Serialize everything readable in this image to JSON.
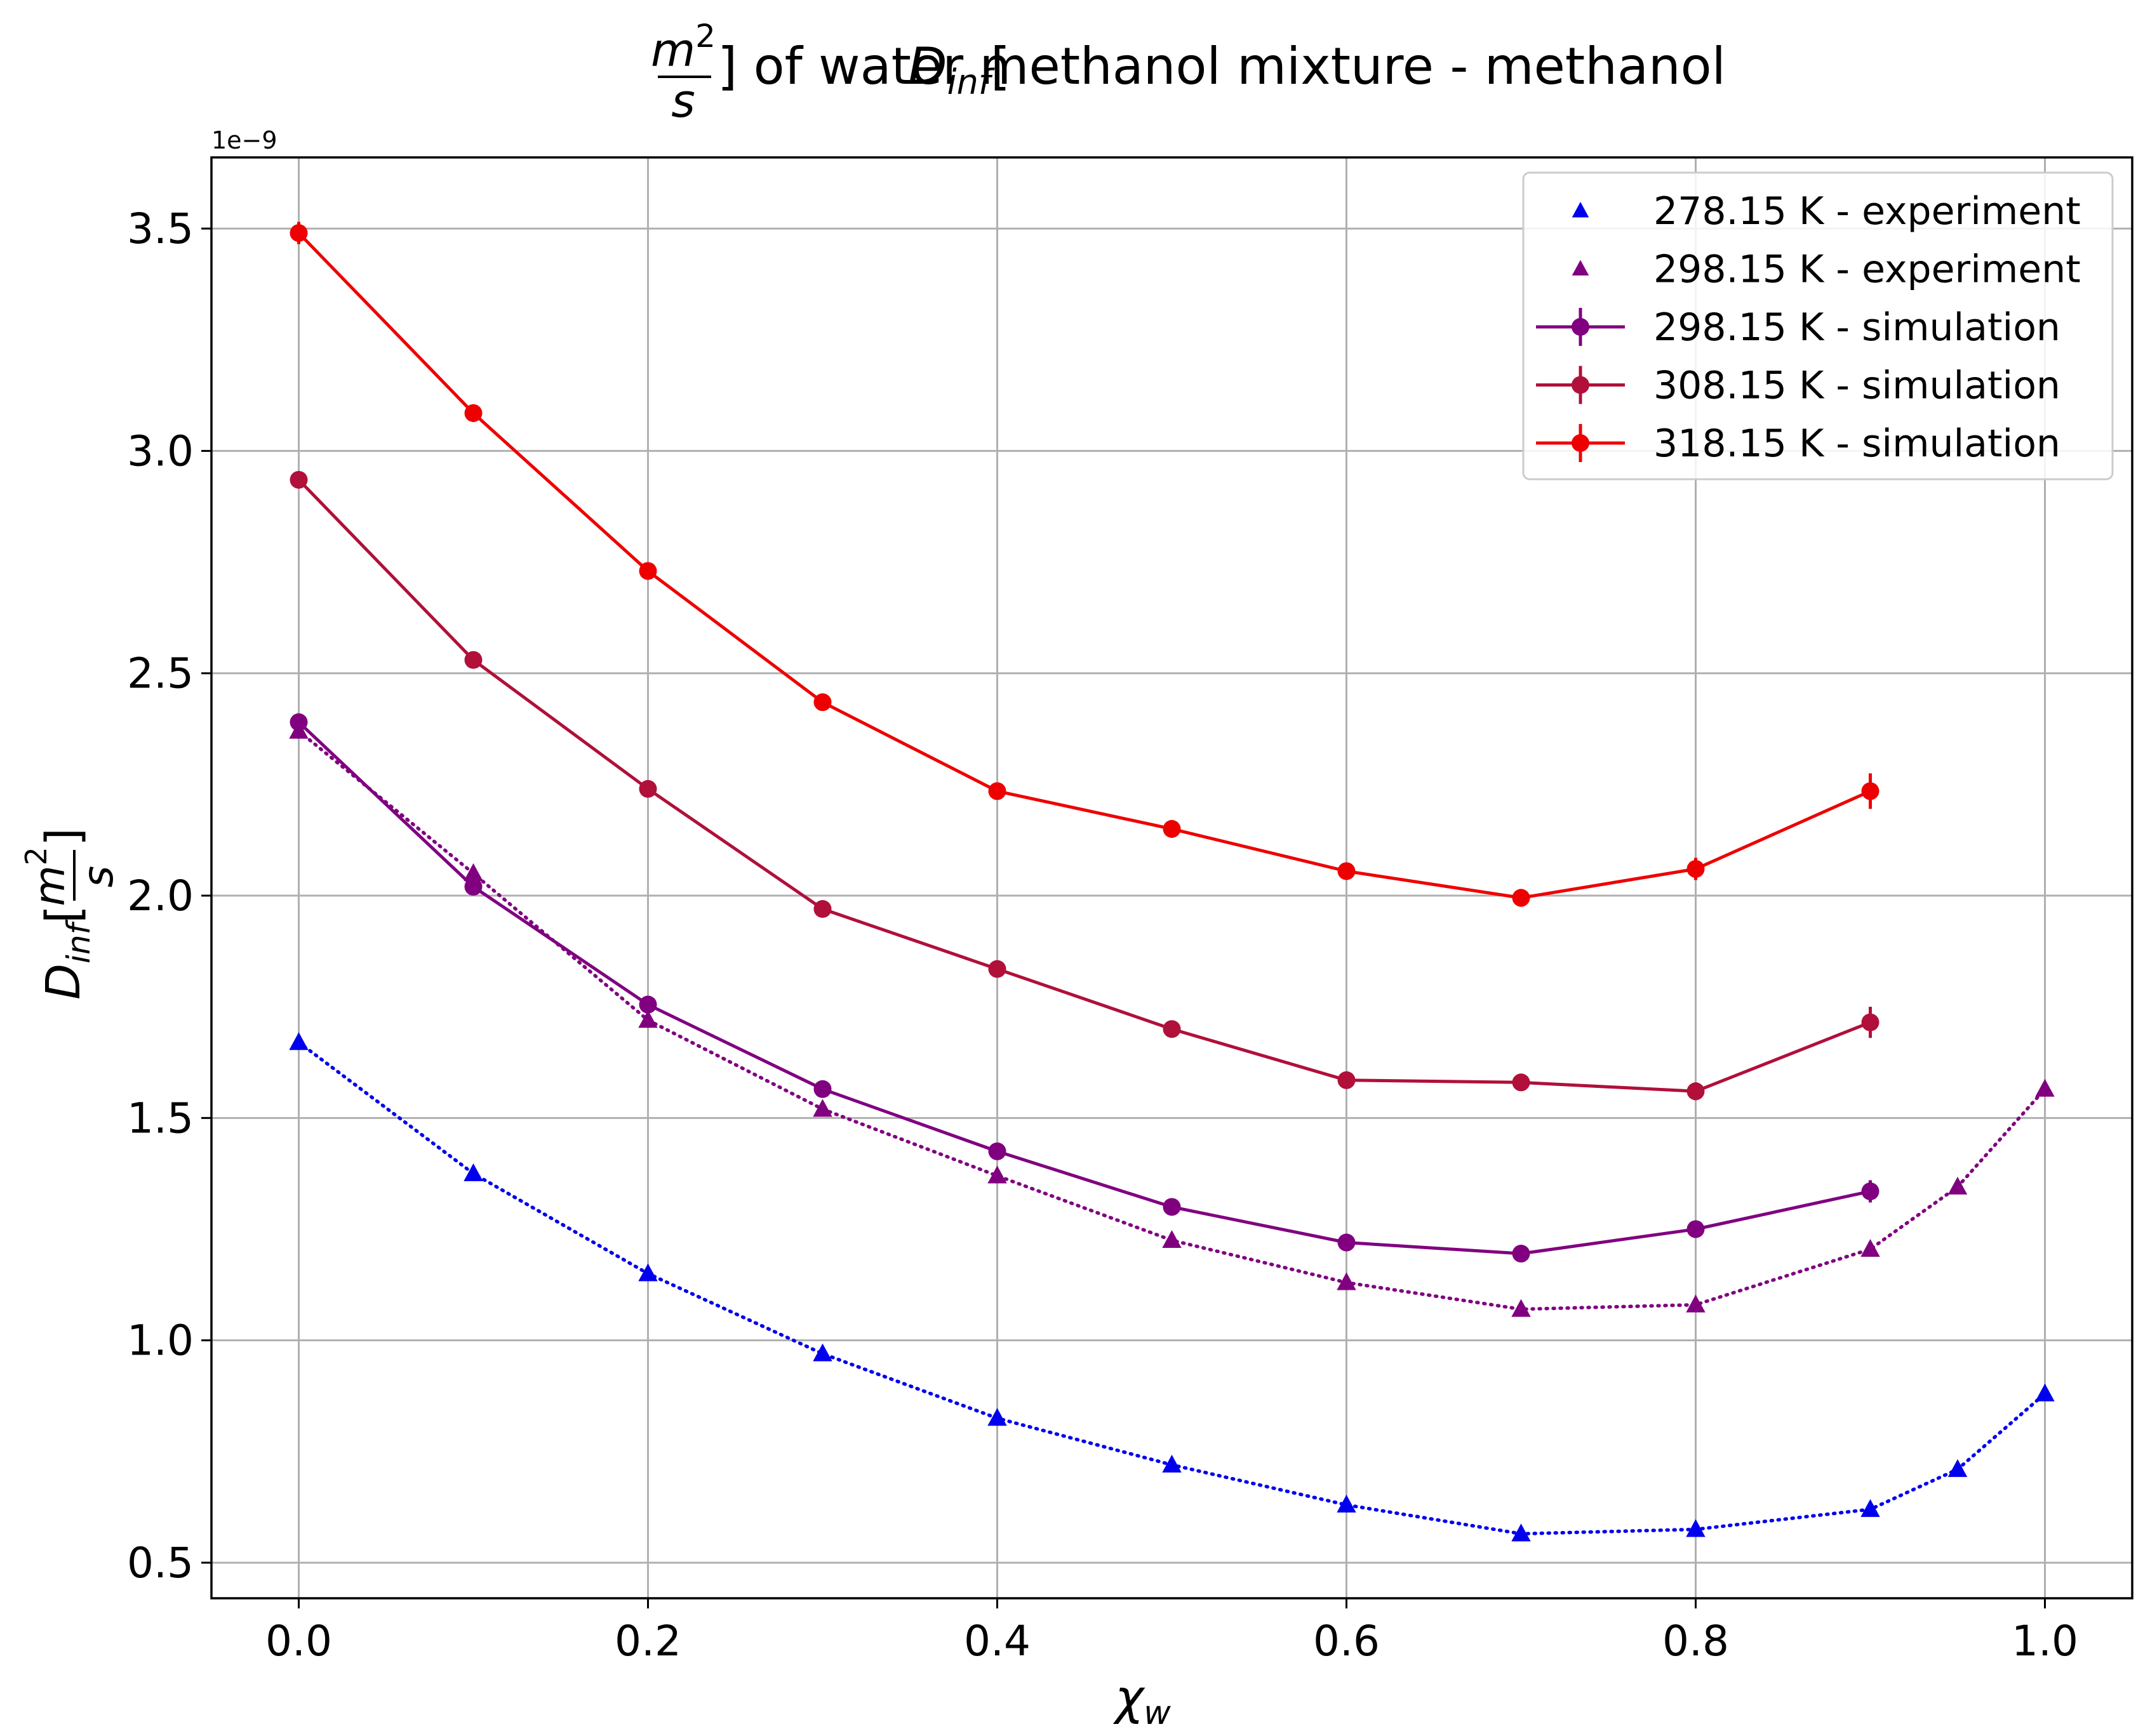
{
  "chart_data": {
    "type": "line",
    "title": {
      "sym": "D",
      "sub": "inf",
      "num": "m",
      "num_sup": "2",
      "den": "s",
      "rest": "] of water methanol mixture - methanol"
    },
    "xlabel": {
      "sym": "χ",
      "sub": "w"
    },
    "ylabel": {
      "sym": "D",
      "sub": "inf",
      "num": "m",
      "num_sup": "2",
      "den": "s"
    },
    "y_offset_text": "1e−9",
    "x_ticks": [
      "0.0",
      "0.2",
      "0.4",
      "0.6",
      "0.8",
      "1.0"
    ],
    "y_ticks": [
      "0.5",
      "1.0",
      "1.5",
      "2.0",
      "2.5",
      "3.0",
      "3.5"
    ],
    "xlim": [
      -0.05,
      1.05
    ],
    "ylim": [
      0.42,
      3.66
    ],
    "y_scale": "1e-9",
    "grid": true,
    "legend_position": "top-right",
    "series": [
      {
        "name": "278.15 K - experiment",
        "kind": "experiment",
        "color": "#0000ee",
        "marker": "triangle",
        "line": "dotted",
        "x": [
          0.0,
          0.1,
          0.2,
          0.3,
          0.4,
          0.5,
          0.6,
          0.7,
          0.8,
          0.9,
          0.95,
          1.0
        ],
        "y": [
          1.67,
          1.375,
          1.15,
          0.97,
          0.825,
          0.72,
          0.63,
          0.565,
          0.575,
          0.62,
          0.71,
          0.88
        ],
        "err": []
      },
      {
        "name": "298.15 K - experiment",
        "kind": "experiment",
        "color": "#800080",
        "marker": "triangle",
        "line": "dotted",
        "x": [
          0.0,
          0.1,
          0.2,
          0.3,
          0.4,
          0.5,
          0.6,
          0.7,
          0.8,
          0.9,
          0.95,
          1.0
        ],
        "y": [
          2.37,
          2.05,
          1.72,
          1.52,
          1.37,
          1.225,
          1.13,
          1.07,
          1.08,
          1.205,
          1.345,
          1.565
        ],
        "err": []
      },
      {
        "name": "298.15 K - simulation",
        "kind": "simulation",
        "color": "#800080",
        "marker": "circle",
        "line": "solid",
        "x": [
          0.0,
          0.1,
          0.2,
          0.3,
          0.4,
          0.5,
          0.6,
          0.7,
          0.8,
          0.9
        ],
        "y": [
          2.39,
          2.02,
          1.755,
          1.565,
          1.425,
          1.3,
          1.22,
          1.195,
          1.25,
          1.335
        ],
        "err": [
          0.015,
          0.012,
          0.01,
          0.01,
          0.01,
          0.01,
          0.01,
          0.01,
          0.012,
          0.025
        ]
      },
      {
        "name": "308.15 K - simulation",
        "kind": "simulation",
        "color": "#b0103a",
        "marker": "circle",
        "line": "solid",
        "x": [
          0.0,
          0.1,
          0.2,
          0.3,
          0.4,
          0.5,
          0.6,
          0.7,
          0.8,
          0.9
        ],
        "y": [
          2.935,
          2.53,
          2.24,
          1.97,
          1.835,
          1.7,
          1.585,
          1.58,
          1.56,
          1.715
        ],
        "err": [
          0.015,
          0.012,
          0.01,
          0.01,
          0.01,
          0.01,
          0.01,
          0.012,
          0.02,
          0.035
        ]
      },
      {
        "name": "318.15 K - simulation",
        "kind": "simulation",
        "color": "#ee0000",
        "marker": "circle",
        "line": "solid",
        "x": [
          0.0,
          0.1,
          0.2,
          0.3,
          0.4,
          0.5,
          0.6,
          0.7,
          0.8,
          0.9
        ],
        "y": [
          3.49,
          3.085,
          2.73,
          2.435,
          2.235,
          2.15,
          2.055,
          1.995,
          2.06,
          2.235
        ],
        "err": [
          0.025,
          0.02,
          0.015,
          0.012,
          0.012,
          0.02,
          0.015,
          0.02,
          0.025,
          0.04
        ]
      }
    ]
  }
}
